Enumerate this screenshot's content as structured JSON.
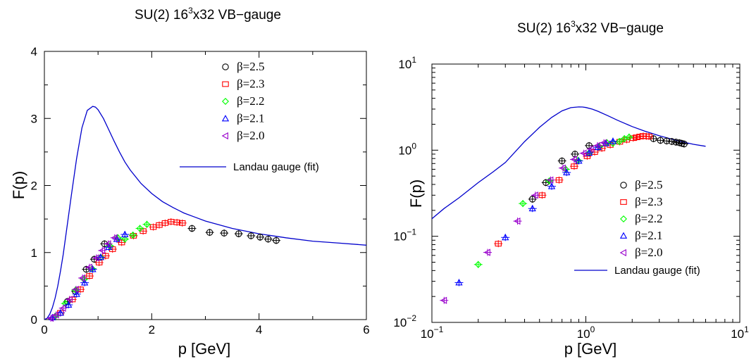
{
  "chart_data": [
    {
      "type": "scatter",
      "title": "SU(2) 16³x32 VB−gauge",
      "title_parts": [
        "SU(2) 16",
        "3",
        "x32 VB−gauge"
      ],
      "xlabel": "p [GeV]",
      "ylabel": "F(p)",
      "xscale": "linear",
      "yscale": "linear",
      "xlim": [
        0,
        6
      ],
      "ylim": [
        0,
        4
      ],
      "xticks": [
        0,
        2,
        4,
        6
      ],
      "xtick_labels": [
        "0",
        "2",
        "4",
        "6"
      ],
      "yticks": [
        0,
        1,
        2,
        3,
        4
      ],
      "ytick_labels": [
        "0",
        "1",
        "2",
        "3",
        "4"
      ],
      "grid": false,
      "legend_placement": "top-right",
      "series": [
        {
          "name": "β=2.5",
          "marker": "circle",
          "color": "#000000",
          "x": [
            0.43,
            0.58,
            0.78,
            0.93,
            1.12,
            2.75,
            3.08,
            3.35,
            3.62,
            3.85,
            4.02,
            4.17,
            4.32
          ],
          "y": [
            0.27,
            0.42,
            0.75,
            0.9,
            1.13,
            1.36,
            1.3,
            1.29,
            1.28,
            1.25,
            1.23,
            1.2,
            1.18
          ]
        },
        {
          "name": "β=2.3",
          "marker": "square",
          "color": "#ff0000",
          "x": [
            0.3,
            0.52,
            0.67,
            0.84,
            1.02,
            1.14,
            1.27,
            1.44,
            1.66,
            1.84,
            2.03,
            2.14,
            2.25,
            2.36,
            2.47,
            2.57
          ],
          "y": [
            0.1,
            0.3,
            0.45,
            0.65,
            0.85,
            0.95,
            1.05,
            1.15,
            1.25,
            1.32,
            1.38,
            1.41,
            1.44,
            1.46,
            1.45,
            1.44
          ]
        },
        {
          "name": "β=2.2",
          "marker": "diamond",
          "color": "#00ff00",
          "x": [
            0.2,
            0.39,
            0.58,
            0.74,
            0.89,
            1.05,
            1.22,
            1.37,
            1.5,
            1.65,
            1.78,
            1.91
          ],
          "y": [
            0.05,
            0.24,
            0.44,
            0.6,
            0.76,
            0.93,
            1.1,
            1.22,
            1.2,
            1.26,
            1.36,
            1.42
          ]
        },
        {
          "name": "β=2.1",
          "marker": "triangle-up",
          "color": "#0000ff",
          "x": [
            0.15,
            0.3,
            0.45,
            0.6,
            0.75,
            0.9,
            1.05,
            1.2,
            1.35,
            1.5
          ],
          "y": [
            0.03,
            0.1,
            0.22,
            0.38,
            0.55,
            0.75,
            0.93,
            1.08,
            1.2,
            1.27
          ]
        },
        {
          "name": "β=2.0",
          "marker": "triangle-left",
          "color": "#9900cc",
          "x": [
            0.12,
            0.22,
            0.35,
            0.47,
            0.59,
            0.71,
            0.84,
            0.97,
            1.08,
            1.19,
            1.31
          ],
          "y": [
            0.02,
            0.07,
            0.17,
            0.3,
            0.45,
            0.62,
            0.78,
            0.92,
            1.03,
            1.13,
            1.22
          ]
        }
      ],
      "fit_curve": {
        "name": "Landau gauge (fit)",
        "color": "#0000cc",
        "x": [
          0.0,
          0.05,
          0.1,
          0.15,
          0.2,
          0.25,
          0.3,
          0.35,
          0.4,
          0.5,
          0.6,
          0.7,
          0.8,
          0.9,
          0.95,
          1.0,
          1.1,
          1.2,
          1.3,
          1.4,
          1.5,
          1.6,
          1.8,
          2.0,
          2.2,
          2.4,
          2.6,
          2.8,
          3.0,
          3.5,
          4.0,
          4.5,
          5.0,
          5.5,
          6.0
        ],
        "y": [
          0.0,
          0.02,
          0.08,
          0.18,
          0.32,
          0.5,
          0.72,
          0.97,
          1.26,
          1.84,
          2.4,
          2.86,
          3.12,
          3.18,
          3.17,
          3.13,
          3.0,
          2.83,
          2.66,
          2.5,
          2.35,
          2.23,
          2.03,
          1.88,
          1.76,
          1.67,
          1.59,
          1.53,
          1.47,
          1.36,
          1.28,
          1.22,
          1.17,
          1.14,
          1.11
        ]
      }
    },
    {
      "type": "scatter",
      "title": "SU(2) 16³x32 VB−gauge",
      "title_parts": [
        "SU(2) 16",
        "3",
        "x32 VB−gauge"
      ],
      "xlabel": "p [GeV]",
      "ylabel": "F(p)",
      "xscale": "log",
      "yscale": "log",
      "xlim": [
        0.1,
        10
      ],
      "ylim": [
        0.01,
        10
      ],
      "xticks": [
        0.1,
        1,
        10
      ],
      "xtick_labels": [
        [
          "10",
          "−1"
        ],
        [
          "10",
          "0"
        ],
        [
          "10",
          "1"
        ]
      ],
      "yticks": [
        0.01,
        0.1,
        1,
        10
      ],
      "ytick_labels": [
        [
          "10",
          "−2"
        ],
        [
          "10",
          "−1"
        ],
        [
          "10",
          "0"
        ],
        [
          "10",
          "1"
        ]
      ],
      "grid": false,
      "legend_placement": "bottom-center",
      "series": [
        {
          "name": "β=2.5",
          "marker": "circle",
          "color": "#000000",
          "x": [
            0.45,
            0.55,
            0.7,
            0.85,
            1.05,
            2.75,
            3.05,
            3.35,
            3.62,
            3.85,
            4.05,
            4.2,
            4.35
          ],
          "y": [
            0.27,
            0.42,
            0.75,
            0.9,
            1.13,
            1.36,
            1.3,
            1.28,
            1.26,
            1.24,
            1.22,
            1.2,
            1.18
          ]
        },
        {
          "name": "β=2.3",
          "marker": "square",
          "color": "#ff0000",
          "x": [
            0.27,
            0.52,
            0.67,
            0.84,
            1.02,
            1.14,
            1.27,
            1.44,
            1.66,
            1.84,
            2.03,
            2.14,
            2.25,
            2.36,
            2.47,
            2.57
          ],
          "y": [
            0.082,
            0.3,
            0.45,
            0.65,
            0.85,
            0.95,
            1.05,
            1.15,
            1.25,
            1.32,
            1.38,
            1.41,
            1.44,
            1.46,
            1.45,
            1.44
          ]
        },
        {
          "name": "β=2.2",
          "marker": "diamond",
          "color": "#00ff00",
          "x": [
            0.2,
            0.39,
            0.58,
            0.74,
            0.89,
            1.05,
            1.22,
            1.37,
            1.5,
            1.65,
            1.78,
            1.91
          ],
          "y": [
            0.047,
            0.24,
            0.44,
            0.6,
            0.76,
            0.93,
            1.1,
            1.22,
            1.2,
            1.26,
            1.36,
            1.42
          ]
        },
        {
          "name": "β=2.1",
          "marker": "triangle-up",
          "color": "#0000ff",
          "x": [
            0.15,
            0.3,
            0.45,
            0.6,
            0.75,
            0.9,
            1.05,
            1.2,
            1.35,
            1.5
          ],
          "y": [
            0.029,
            0.097,
            0.21,
            0.38,
            0.55,
            0.75,
            0.93,
            1.08,
            1.2,
            1.27
          ]
        },
        {
          "name": "β=2.0",
          "marker": "triangle-left",
          "color": "#9900cc",
          "x": [
            0.12,
            0.23,
            0.36,
            0.47,
            0.59,
            0.71,
            0.84,
            0.97,
            1.08,
            1.19,
            1.31
          ],
          "y": [
            0.018,
            0.065,
            0.15,
            0.3,
            0.45,
            0.62,
            0.78,
            0.92,
            1.03,
            1.13,
            1.22
          ]
        }
      ],
      "fit_curve": {
        "name": "Landau gauge (fit)",
        "color": "#0000cc",
        "x": [
          0.1,
          0.12,
          0.15,
          0.2,
          0.25,
          0.3,
          0.4,
          0.5,
          0.6,
          0.7,
          0.8,
          0.9,
          0.95,
          1.0,
          1.1,
          1.2,
          1.4,
          1.6,
          2.0,
          2.4,
          3.0,
          4.0,
          5.0,
          6.0
        ],
        "y": [
          0.16,
          0.21,
          0.28,
          0.42,
          0.56,
          0.72,
          1.26,
          1.84,
          2.4,
          2.86,
          3.12,
          3.18,
          3.17,
          3.13,
          3.0,
          2.83,
          2.5,
          2.23,
          1.88,
          1.67,
          1.47,
          1.28,
          1.17,
          1.11
        ]
      }
    }
  ]
}
